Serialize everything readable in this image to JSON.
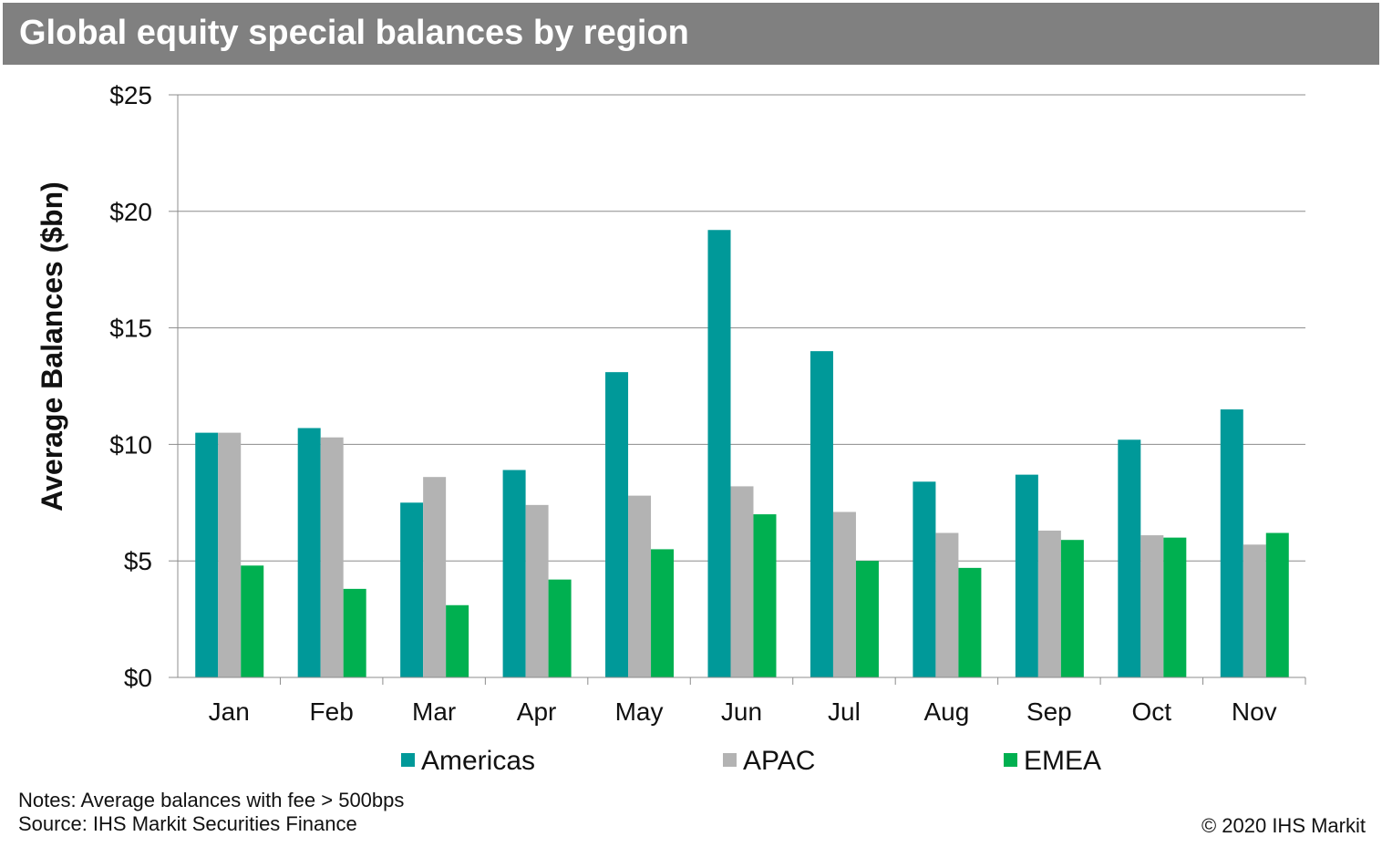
{
  "header": {
    "title": "Global equity special balances by region"
  },
  "chart_data": {
    "type": "bar",
    "title": "Global equity special balances by region",
    "xlabel": "",
    "ylabel": "Average Balances ($bn)",
    "ylim": [
      0,
      25
    ],
    "yticks": [
      0,
      5,
      10,
      15,
      20,
      25
    ],
    "ytick_labels": [
      "$0",
      "$5",
      "$10",
      "$15",
      "$20",
      "$25"
    ],
    "grid": true,
    "legend_position": "bottom",
    "categories": [
      "Jan",
      "Feb",
      "Mar",
      "Apr",
      "May",
      "Jun",
      "Jul",
      "Aug",
      "Sep",
      "Oct",
      "Nov"
    ],
    "series": [
      {
        "name": "Americas",
        "color": "#009999",
        "values": [
          10.5,
          10.7,
          7.5,
          8.9,
          13.1,
          19.2,
          14.0,
          8.4,
          8.7,
          10.2,
          11.5
        ]
      },
      {
        "name": "APAC",
        "color": "#b3b3b3",
        "values": [
          10.5,
          10.3,
          8.6,
          7.4,
          7.8,
          8.2,
          7.1,
          6.2,
          6.3,
          6.1,
          5.7
        ]
      },
      {
        "name": "EMEA",
        "color": "#00b050",
        "values": [
          4.8,
          3.8,
          3.1,
          4.2,
          5.5,
          7.0,
          5.0,
          4.7,
          5.9,
          6.0,
          6.2
        ]
      }
    ]
  },
  "footer": {
    "notes": "Notes: Average balances with fee > 500bps",
    "source": "Source: IHS Markit Securities Finance",
    "copyright": "© 2020 IHS Markit"
  }
}
